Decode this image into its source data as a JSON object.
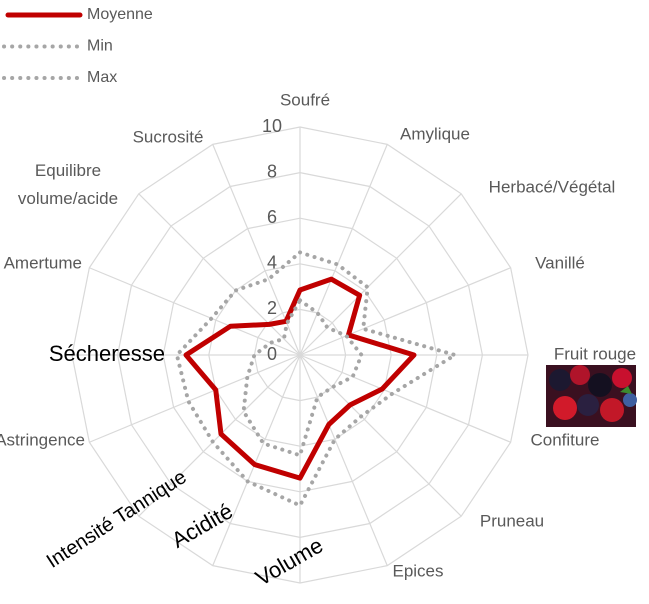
{
  "chart_data": {
    "type": "radar",
    "categories": [
      "Soufré",
      "Amylique",
      "Herbacé/Végétal",
      "Vanillé",
      "Fruit rouge",
      "Confiture",
      "Pruneau",
      "Epices",
      "Volume",
      "Acidité",
      "Intensité Tannique",
      "Astringence",
      "Sécheresse",
      "Amertume",
      "Equilibre volume/acide",
      "Sucrosité"
    ],
    "series": [
      {
        "name": "Moyenne",
        "color": "#c00000",
        "line_style": "solid",
        "values": [
          2.85,
          3.6,
          3.7,
          2.3,
          5.0,
          3.9,
          3.1,
          3.3,
          5.4,
          5.2,
          4.9,
          4.0,
          5.0,
          3.3,
          1.9,
          1.6
        ]
      },
      {
        "name": "Min",
        "color": "#a6a6a6",
        "line_style": "dotted",
        "values": [
          2.4,
          2.0,
          1.7,
          2.2,
          2.7,
          2.5,
          2.0,
          2.0,
          4.4,
          4.2,
          3.5,
          2.5,
          2.0,
          1.4,
          1.0,
          1.5
        ]
      },
      {
        "name": "Max",
        "color": "#a6a6a6",
        "line_style": "dotted",
        "values": [
          4.5,
          4.3,
          4.2,
          3.0,
          6.8,
          4.4,
          3.8,
          4.0,
          6.6,
          6.0,
          5.4,
          5.3,
          5.4,
          4.2,
          4.0,
          3.6
        ]
      }
    ],
    "rlim": [
      0,
      10
    ],
    "rticks": [
      0,
      2,
      4,
      6,
      8,
      10
    ],
    "grid": true,
    "legend": "top-left"
  }
}
